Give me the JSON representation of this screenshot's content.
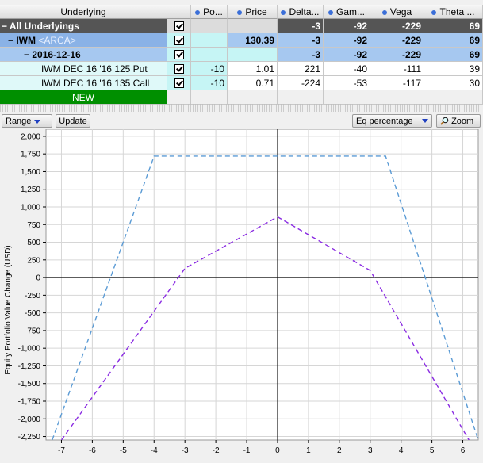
{
  "columns": [
    {
      "label": "Underlying",
      "dot": false
    },
    {
      "label": "",
      "dot": false
    },
    {
      "label": "Po...",
      "dot": true
    },
    {
      "label": "Price",
      "dot": true
    },
    {
      "label": "Delta...",
      "dot": true
    },
    {
      "label": "Gam...",
      "dot": true
    },
    {
      "label": "Vega",
      "dot": true
    },
    {
      "label": "Theta ...",
      "dot": true
    }
  ],
  "rows": {
    "all": {
      "label": "All Underlyings",
      "po": "",
      "price": "",
      "delta": "-3",
      "gamma": "-92",
      "vega": "-229",
      "theta": "69"
    },
    "iwm": {
      "label": "IWM",
      "exchange": "<ARCA>",
      "po": "",
      "price": "130.39",
      "delta": "-3",
      "gamma": "-92",
      "vega": "-229",
      "theta": "69"
    },
    "exp": {
      "label": "2016-12-16",
      "po": "",
      "price": "",
      "delta": "-3",
      "gamma": "-92",
      "vega": "-229",
      "theta": "69"
    },
    "put": {
      "label": "IWM DEC 16 '16 125 Put",
      "po": "-10",
      "price": "1.01",
      "delta": "221",
      "gamma": "-40",
      "vega": "-111",
      "theta": "39"
    },
    "call": {
      "label": "IWM DEC 16 '16 135 Call",
      "po": "-10",
      "price": "0.71",
      "delta": "-224",
      "gamma": "-53",
      "vega": "-117",
      "theta": "30"
    },
    "new": {
      "label": "NEW"
    }
  },
  "toolbar": {
    "range_label": "Range",
    "update_label": "Update",
    "mode_label": "Eq percentage",
    "zoom_label": "Zoom"
  },
  "chart_data": {
    "type": "line",
    "ylabel": "Equity Portfolio Value Change (USD)",
    "xlabel": "",
    "xlim": [
      -7.5,
      6.5
    ],
    "ylim": [
      -2300,
      2100
    ],
    "xticks": [
      -7,
      -6,
      -5,
      -4,
      -3,
      -2,
      -1,
      0,
      1,
      2,
      3,
      4,
      5,
      6
    ],
    "yticks": [
      2000,
      1750,
      1500,
      1250,
      1000,
      750,
      500,
      250,
      0,
      -250,
      -500,
      -750,
      -1000,
      -1250,
      -1500,
      -1750,
      -2000,
      -2250
    ],
    "ytick_labels": [
      "2,000",
      "1,750",
      "1,500",
      "1,250",
      "1,000",
      "750",
      "500",
      "250",
      "0",
      "-250",
      "-500",
      "-750",
      "-1,000",
      "-1,250",
      "-1,500",
      "-1,750",
      "-2,000",
      "-2,250"
    ],
    "grid": true,
    "series": [
      {
        "color": "#5b9bd5",
        "style": "dashed",
        "x": [
          -7.3,
          -4.0,
          3.5,
          6.5
        ],
        "y": [
          -2300,
          1720,
          1720,
          -2300
        ]
      },
      {
        "color": "#8a2be2",
        "style": "dashed",
        "x": [
          -7.0,
          -3.0,
          0.0,
          3.0,
          6.2
        ],
        "y": [
          -2300,
          130,
          860,
          100,
          -2300
        ]
      }
    ]
  }
}
